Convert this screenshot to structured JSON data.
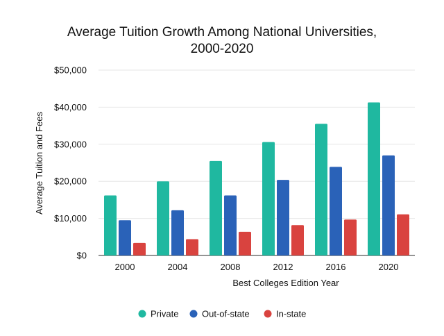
{
  "chart_data": {
    "type": "bar",
    "title": "Average Tuition Growth Among National Universities,",
    "subtitle": "2000-2020",
    "xlabel": "Best Colleges Edition Year",
    "ylabel": "Average Tuition and Fees",
    "categories": [
      "2000",
      "2004",
      "2008",
      "2012",
      "2016",
      "2020"
    ],
    "ylim": [
      0,
      50000
    ],
    "yticks": [
      0,
      10000,
      20000,
      30000,
      40000,
      50000
    ],
    "ytick_labels": [
      "$0",
      "$10,000",
      "$20,000",
      "$30,000",
      "$40,000",
      "$50,000"
    ],
    "grid": true,
    "legend_position": "bottom",
    "series": [
      {
        "name": "Private",
        "color": "#1fb8a0",
        "values": [
          16200,
          20000,
          25500,
          30600,
          35500,
          41300
        ]
      },
      {
        "name": "Out-of-state",
        "color": "#2a62b8",
        "values": [
          9500,
          12200,
          16200,
          20400,
          23900,
          27000
        ]
      },
      {
        "name": "In-state",
        "color": "#d9433f",
        "values": [
          3400,
          4400,
          6400,
          8200,
          9700,
          11100
        ]
      }
    ]
  }
}
